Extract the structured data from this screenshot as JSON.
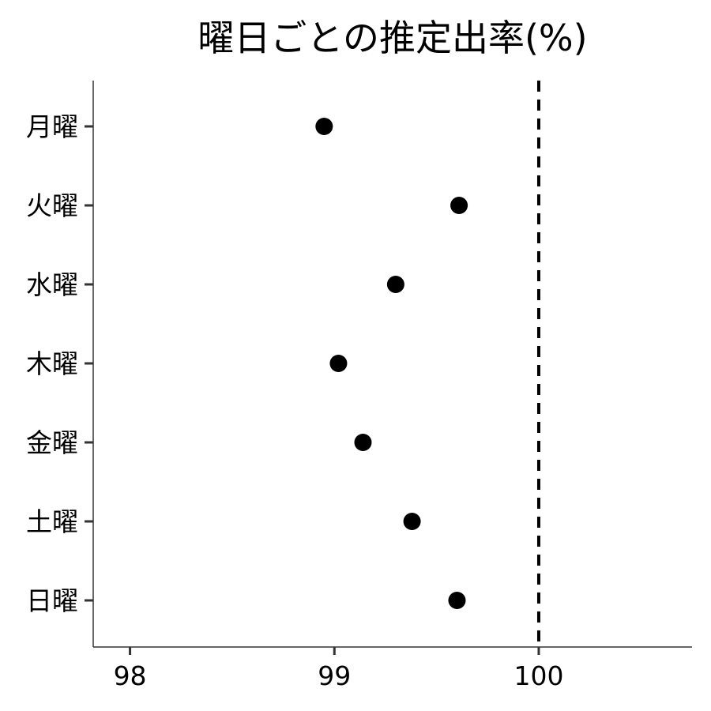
{
  "chart_data": {
    "type": "scatter",
    "title": "曜日ごとの推定出率(%)",
    "xlabel": "",
    "ylabel": "",
    "xlim": [
      97.82,
      100.75
    ],
    "xticks": [
      98,
      99,
      100
    ],
    "xtick_labels": [
      "98",
      "99",
      "100"
    ],
    "categories": [
      "月曜",
      "火曜",
      "水曜",
      "木曜",
      "金曜",
      "土曜",
      "日曜"
    ],
    "points": [
      {
        "category": "月曜",
        "x": 98.95
      },
      {
        "category": "火曜",
        "x": 99.61
      },
      {
        "category": "水曜",
        "x": 99.3
      },
      {
        "category": "木曜",
        "x": 99.02
      },
      {
        "category": "金曜",
        "x": 99.14
      },
      {
        "category": "土曜",
        "x": 99.38
      },
      {
        "category": "日曜",
        "x": 99.6
      }
    ],
    "reference_line": {
      "x": 100,
      "style": "dashed"
    },
    "grid": false,
    "legend": "none",
    "colors": {
      "point": "#000000",
      "reference_line": "#000000",
      "axis": "#333333"
    }
  }
}
